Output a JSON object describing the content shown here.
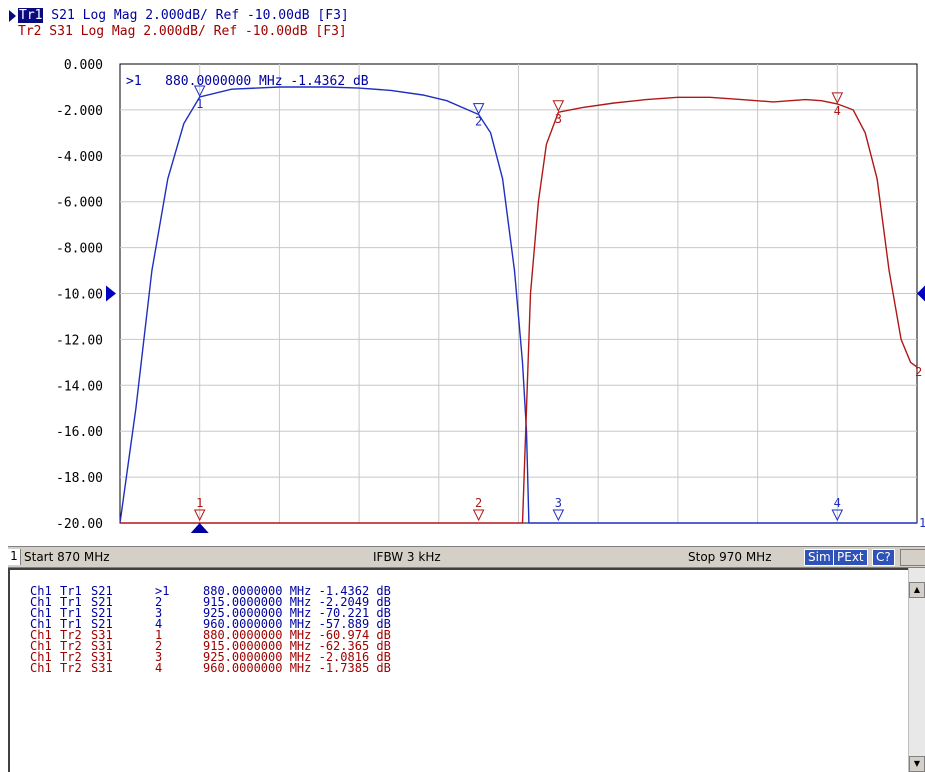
{
  "header": {
    "trace1": {
      "tag": "Tr1",
      "text": " S21 Log Mag 2.000dB/ Ref -10.00dB [F3]",
      "color": "#0000a0"
    },
    "trace2": {
      "text": "Tr2 S31 Log Mag 2.000dB/ Ref -10.00dB [F3]",
      "color": "#a00000"
    }
  },
  "chart_data": {
    "type": "line",
    "xlim": [
      870,
      970
    ],
    "ylim": [
      -20,
      0
    ],
    "x_divisions": 10,
    "grid": true,
    "y_tick_labels": [
      "0.000",
      "-2.000",
      "-4.000",
      "-6.000",
      "-8.000",
      "-10.00",
      "-12.00",
      "-14.00",
      "-16.00",
      "-18.00",
      "-20.00"
    ],
    "ref_level": -10,
    "active_marker_readout": ">1   880.0000000 MHz -1.4362 dB",
    "series": [
      {
        "color": "#1f2fbf",
        "points": [
          [
            870,
            -20
          ],
          [
            872,
            -15
          ],
          [
            874,
            -9
          ],
          [
            876,
            -5
          ],
          [
            878,
            -2.6
          ],
          [
            880,
            -1.44
          ],
          [
            884,
            -1.1
          ],
          [
            890,
            -1.0
          ],
          [
            896,
            -1.0
          ],
          [
            900,
            -1.05
          ],
          [
            904,
            -1.15
          ],
          [
            908,
            -1.35
          ],
          [
            911,
            -1.6
          ],
          [
            913,
            -1.9
          ],
          [
            915,
            -2.2
          ],
          [
            916.5,
            -3
          ],
          [
            918,
            -5
          ],
          [
            919.5,
            -9
          ],
          [
            920.5,
            -13
          ],
          [
            921,
            -16
          ],
          [
            921.3,
            -20
          ],
          [
            970,
            -20
          ]
        ],
        "markers": [
          {
            "label": "1",
            "x": 880,
            "y": -1.4362
          },
          {
            "label": "2",
            "x": 915,
            "y": -2.2049
          },
          {
            "label": "3",
            "x": 925,
            "y": -20
          },
          {
            "label": "4",
            "x": 960,
            "y": -20
          }
        ]
      },
      {
        "color": "#b01818",
        "points": [
          [
            870,
            -20
          ],
          [
            920.5,
            -20
          ],
          [
            921,
            -15
          ],
          [
            921.5,
            -10
          ],
          [
            922.5,
            -6
          ],
          [
            923.5,
            -3.5
          ],
          [
            925,
            -2.1
          ],
          [
            928,
            -1.9
          ],
          [
            932,
            -1.7
          ],
          [
            936,
            -1.55
          ],
          [
            940,
            -1.45
          ],
          [
            944,
            -1.45
          ],
          [
            948,
            -1.55
          ],
          [
            952,
            -1.65
          ],
          [
            956,
            -1.55
          ],
          [
            958,
            -1.6
          ],
          [
            960,
            -1.74
          ],
          [
            962,
            -2
          ],
          [
            963.5,
            -3
          ],
          [
            965,
            -5
          ],
          [
            966.5,
            -9
          ],
          [
            968,
            -12
          ],
          [
            969.2,
            -13
          ],
          [
            970,
            -13.2
          ]
        ],
        "markers": [
          {
            "label": "1",
            "x": 880,
            "y": -20
          },
          {
            "label": "2",
            "x": 915,
            "y": -20
          },
          {
            "label": "3",
            "x": 925,
            "y": -2.0816
          },
          {
            "label": "4",
            "x": 960,
            "y": -1.7385
          }
        ]
      }
    ]
  },
  "status_bar": {
    "channel": "1",
    "start": "Start 870 MHz",
    "ifbw": "IFBW 3 kHz",
    "stop": "Stop 970 MHz",
    "flags": [
      "Sim",
      "PExt",
      "C?"
    ]
  },
  "marker_table": [
    {
      "ch": "Ch1",
      "tr": "Tr1",
      "param": "S21",
      "num": ">1",
      "value": "880.0000000 MHz -1.4362 dB",
      "color": "#0000a0"
    },
    {
      "ch": "Ch1",
      "tr": "Tr1",
      "param": "S21",
      "num": "2",
      "value": "915.0000000 MHz -2.2049 dB",
      "color": "#0000a0"
    },
    {
      "ch": "Ch1",
      "tr": "Tr1",
      "param": "S21",
      "num": "3",
      "value": "925.0000000 MHz -70.221 dB",
      "color": "#0000a0"
    },
    {
      "ch": "Ch1",
      "tr": "Tr1",
      "param": "S21",
      "num": "4",
      "value": "960.0000000 MHz -57.889 dB",
      "color": "#0000a0"
    },
    {
      "ch": "Ch1",
      "tr": "Tr2",
      "param": "S31",
      "num": "1",
      "value": "880.0000000 MHz -60.974 dB",
      "color": "#a00000"
    },
    {
      "ch": "Ch1",
      "tr": "Tr2",
      "param": "S31",
      "num": "2",
      "value": "915.0000000 MHz -62.365 dB",
      "color": "#a00000"
    },
    {
      "ch": "Ch1",
      "tr": "Tr2",
      "param": "S31",
      "num": "3",
      "value": "925.0000000 MHz -2.0816 dB",
      "color": "#a00000"
    },
    {
      "ch": "Ch1",
      "tr": "Tr2",
      "param": "S31",
      "num": "4",
      "value": "960.0000000 MHz -1.7385 dB",
      "color": "#a00000"
    }
  ]
}
